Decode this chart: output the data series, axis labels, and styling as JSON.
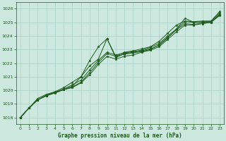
{
  "background_color": "#cce8df",
  "grid_color": "#aacfc5",
  "line_color": "#1e5c1e",
  "text_color": "#1e5c1e",
  "xlabel": "Graphe pression niveau de la mer (hPa)",
  "xlim": [
    -0.5,
    23.5
  ],
  "ylim": [
    1017.5,
    1026.5
  ],
  "yticks": [
    1018,
    1019,
    1020,
    1021,
    1022,
    1023,
    1024,
    1025,
    1026
  ],
  "xticks": [
    0,
    1,
    2,
    3,
    4,
    5,
    6,
    7,
    8,
    9,
    10,
    11,
    12,
    13,
    14,
    15,
    16,
    17,
    18,
    19,
    20,
    21,
    22,
    23
  ],
  "series": [
    [
      1018.0,
      1018.7,
      1019.4,
      1019.7,
      1019.9,
      1020.2,
      1020.6,
      1021.0,
      1021.8,
      1022.3,
      1023.8,
      1022.5,
      1022.8,
      1022.9,
      1023.05,
      1023.2,
      1023.6,
      1024.2,
      1024.8,
      1025.1,
      1025.05,
      1025.1,
      1025.1,
      1025.8
    ],
    [
      1018.0,
      1018.7,
      1019.3,
      1019.65,
      1019.85,
      1020.1,
      1020.4,
      1020.75,
      1021.5,
      1022.2,
      1022.8,
      1022.6,
      1022.75,
      1022.85,
      1022.95,
      1023.15,
      1023.45,
      1024.0,
      1024.5,
      1025.05,
      1025.0,
      1025.05,
      1025.05,
      1025.7
    ],
    [
      1018.0,
      1018.7,
      1019.3,
      1019.6,
      1019.8,
      1020.05,
      1020.3,
      1021.0,
      1022.2,
      1023.2,
      1023.8,
      1022.4,
      1022.7,
      1022.8,
      1022.9,
      1023.05,
      1023.3,
      1023.85,
      1024.5,
      1025.3,
      1025.0,
      1025.0,
      1025.05,
      1025.55
    ],
    [
      1018.0,
      1018.7,
      1019.3,
      1019.6,
      1019.85,
      1020.05,
      1020.25,
      1020.6,
      1021.3,
      1022.05,
      1022.7,
      1022.5,
      1022.65,
      1022.75,
      1022.85,
      1023.0,
      1023.35,
      1023.9,
      1024.45,
      1024.9,
      1024.85,
      1024.95,
      1025.0,
      1025.6
    ],
    [
      1018.0,
      1018.7,
      1019.3,
      1019.6,
      1019.85,
      1020.05,
      1020.2,
      1020.55,
      1021.15,
      1021.9,
      1022.5,
      1022.3,
      1022.5,
      1022.6,
      1022.8,
      1022.95,
      1023.2,
      1023.75,
      1024.3,
      1024.8,
      1024.8,
      1024.9,
      1025.0,
      1025.5
    ]
  ]
}
